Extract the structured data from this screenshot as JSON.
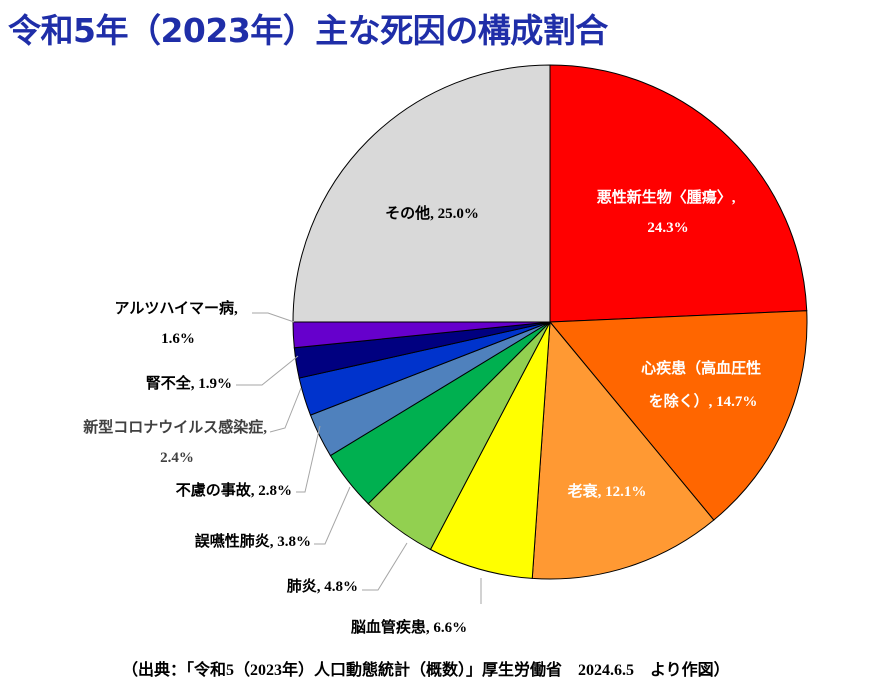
{
  "chart_data": {
    "type": "pie",
    "title": "令和5年（2023年）主な死因の構成割合",
    "slices": [
      {
        "name": "悪性新生物〈腫瘍〉",
        "value": 24.3,
        "value_label": "24.3%",
        "color": "#ff0000",
        "label_color": "#ffffff"
      },
      {
        "name": "心疾患（高血圧性を除く）",
        "value": 14.7,
        "value_label": "14.7%",
        "color": "#ff6600",
        "label_color": "#ffffff"
      },
      {
        "name": "老衰",
        "value": 12.1,
        "value_label": "12.1%",
        "color": "#ff9933",
        "label_color": "#ffffff"
      },
      {
        "name": "脳血管疾患",
        "value": 6.6,
        "value_label": "6.6%",
        "color": "#ffff00",
        "label_color": "#000000"
      },
      {
        "name": "肺炎",
        "value": 4.8,
        "value_label": "4.8%",
        "color": "#92d050",
        "label_color": "#000000"
      },
      {
        "name": "誤嚥性肺炎",
        "value": 3.8,
        "value_label": "3.8%",
        "color": "#00b050",
        "label_color": "#000000"
      },
      {
        "name": "不慮の事故",
        "value": 2.8,
        "value_label": "2.8%",
        "color": "#4f81bd",
        "label_color": "#000000"
      },
      {
        "name": "新型コロナウイルス感染症",
        "value": 2.4,
        "value_label": "2.4%",
        "color": "#0033cc",
        "label_color": "#404040"
      },
      {
        "name": "腎不全",
        "value": 1.9,
        "value_label": "1.9%",
        "color": "#000080",
        "label_color": "#000000"
      },
      {
        "name": "アルツハイマー病",
        "value": 1.6,
        "value_label": "1.6%",
        "color": "#6600cc",
        "label_color": "#000000"
      },
      {
        "name": "その他",
        "value": 25.0,
        "value_label": "25.0%",
        "color": "#d9d9d9",
        "label_color": "#000000"
      }
    ],
    "start_angle": "12 o'clock",
    "direction": "clockwise"
  },
  "labels": {
    "cancer_line1": "悪性新生物〈腫瘍〉,",
    "cancer_line2": "24.3%",
    "heart_line1": "心疾患（高血圧性",
    "heart_line2": "を除く）, 14.7%",
    "senility": "老衰, 12.1%",
    "stroke": "脳血管疾患, 6.6%",
    "pneumonia": "肺炎, 4.8%",
    "aspiration": "誤嚥性肺炎, 3.8%",
    "accident": "不慮の事故, 2.8%",
    "covid_line1": "新型コロナウイルス感染症,",
    "covid_line2": "2.4%",
    "renal": "腎不全, 1.9%",
    "alzheimer_line1": "アルツハイマー病,",
    "alzheimer_line2": "1.6%",
    "other": "その他, 25.0%"
  },
  "source_note": "（出典：「令和5（2023年）人口動態統計（概数）」厚生労働省　2024.6.5　より作図）"
}
